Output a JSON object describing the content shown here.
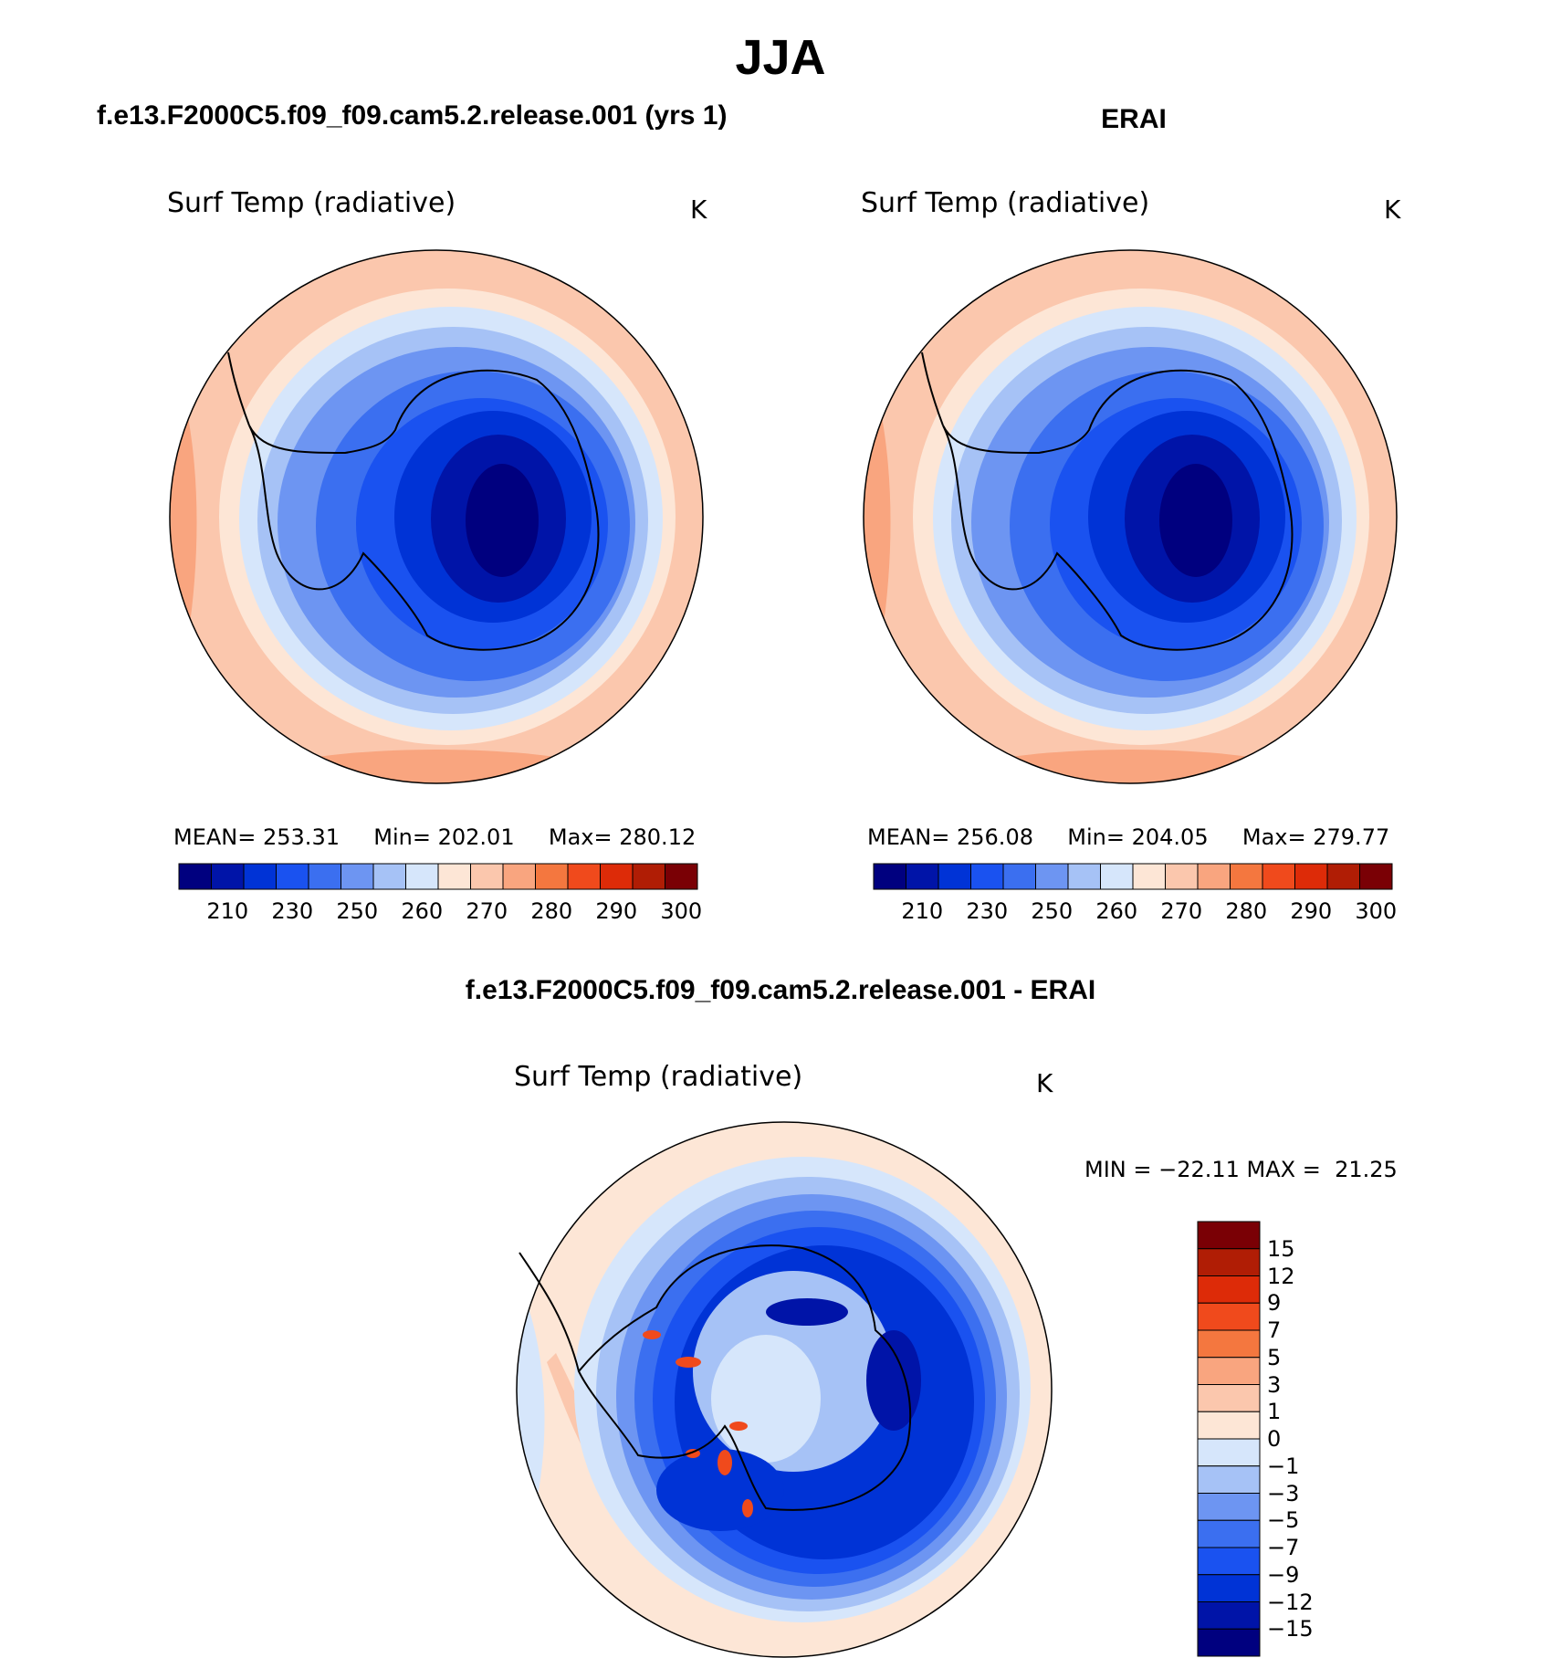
{
  "season": "JJA",
  "colors": {
    "abs_scale": [
      "#00007f",
      "#0014a8",
      "#0033d6",
      "#1a52f0",
      "#3b6ff0",
      "#6d95f2",
      "#a6c2f6",
      "#d6e6fb",
      "#fde6d6",
      "#fbc7ad",
      "#f9a57f",
      "#f4773f",
      "#f04a1c",
      "#dd2b08",
      "#b01d05",
      "#7a0005"
    ],
    "diff_scale": [
      "#00007f",
      "#0014a8",
      "#0033d6",
      "#1a52f0",
      "#3b6ff0",
      "#6d95f2",
      "#a6c2f6",
      "#d6e6fb",
      "#fde6d6",
      "#fbc7ad",
      "#f9a57f",
      "#f4773f",
      "#f04a1c",
      "#dd2b08",
      "#b01d05",
      "#7a0005"
    ],
    "coast": "#000000"
  },
  "panel_left": {
    "heading": "f.e13.F2000C5.f09_f09.cam5.2.release.001 (yrs 1)",
    "variable": "Surf Temp (radiative)",
    "units": "K",
    "stats": {
      "mean_label": "MEAN=",
      "mean": "253.31",
      "min_label": "Min=",
      "min": "202.01",
      "max_label": "Max=",
      "max": "280.12"
    },
    "colorbar_labels": [
      "210",
      "230",
      "250",
      "260",
      "270",
      "280",
      "290",
      "300"
    ]
  },
  "panel_right": {
    "heading": "ERAI",
    "variable": "Surf Temp (radiative)",
    "units": "K",
    "stats": {
      "mean_label": "MEAN=",
      "mean": "256.08",
      "min_label": "Min=",
      "min": "204.05",
      "max_label": "Max=",
      "max": "279.77"
    },
    "colorbar_labels": [
      "210",
      "230",
      "250",
      "260",
      "270",
      "280",
      "290",
      "300"
    ]
  },
  "panel_diff": {
    "heading": "f.e13.F2000C5.f09_f09.cam5.2.release.001 - ERAI",
    "variable": "Surf Temp (radiative)",
    "units": "K",
    "range_text": "MIN = −22.11 MAX =  21.25",
    "colorbar_labels": [
      "15",
      "12",
      "9",
      "7",
      "5",
      "3",
      "1",
      "0",
      "−1",
      "−3",
      "−5",
      "−7",
      "−9",
      "−12",
      "−15"
    ]
  }
}
